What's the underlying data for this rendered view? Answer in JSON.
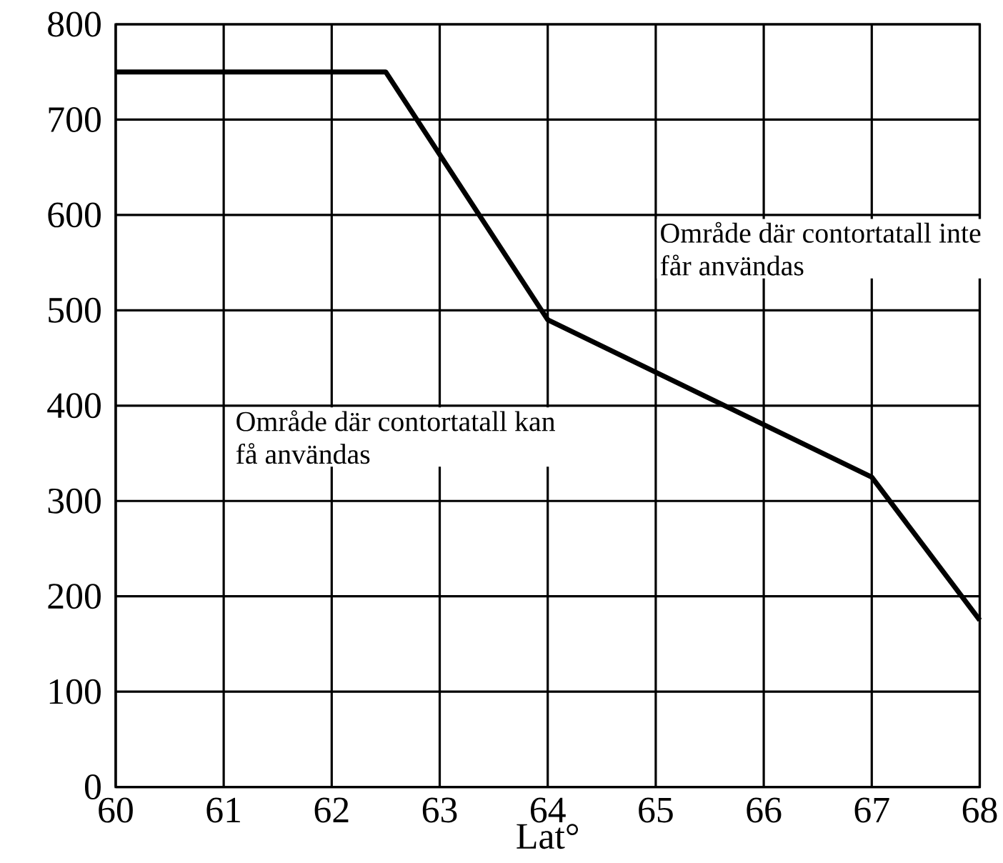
{
  "chart_data": {
    "type": "line",
    "xlabel": "Lat°",
    "x": [
      60,
      62.5,
      64,
      67,
      68
    ],
    "values": [
      750,
      750,
      490,
      325,
      175
    ],
    "color": "#000000",
    "xlim": [
      60,
      68
    ],
    "xticks": [
      60,
      61,
      62,
      63,
      64,
      65,
      66,
      67,
      68
    ],
    "ylim": [
      0,
      800
    ],
    "yticks": [
      0,
      100,
      200,
      300,
      400,
      500,
      600,
      700,
      800
    ],
    "grid": true,
    "annotations": [
      "Område där contortatall kan få användas",
      "Område där contortatall inte får användas"
    ]
  }
}
